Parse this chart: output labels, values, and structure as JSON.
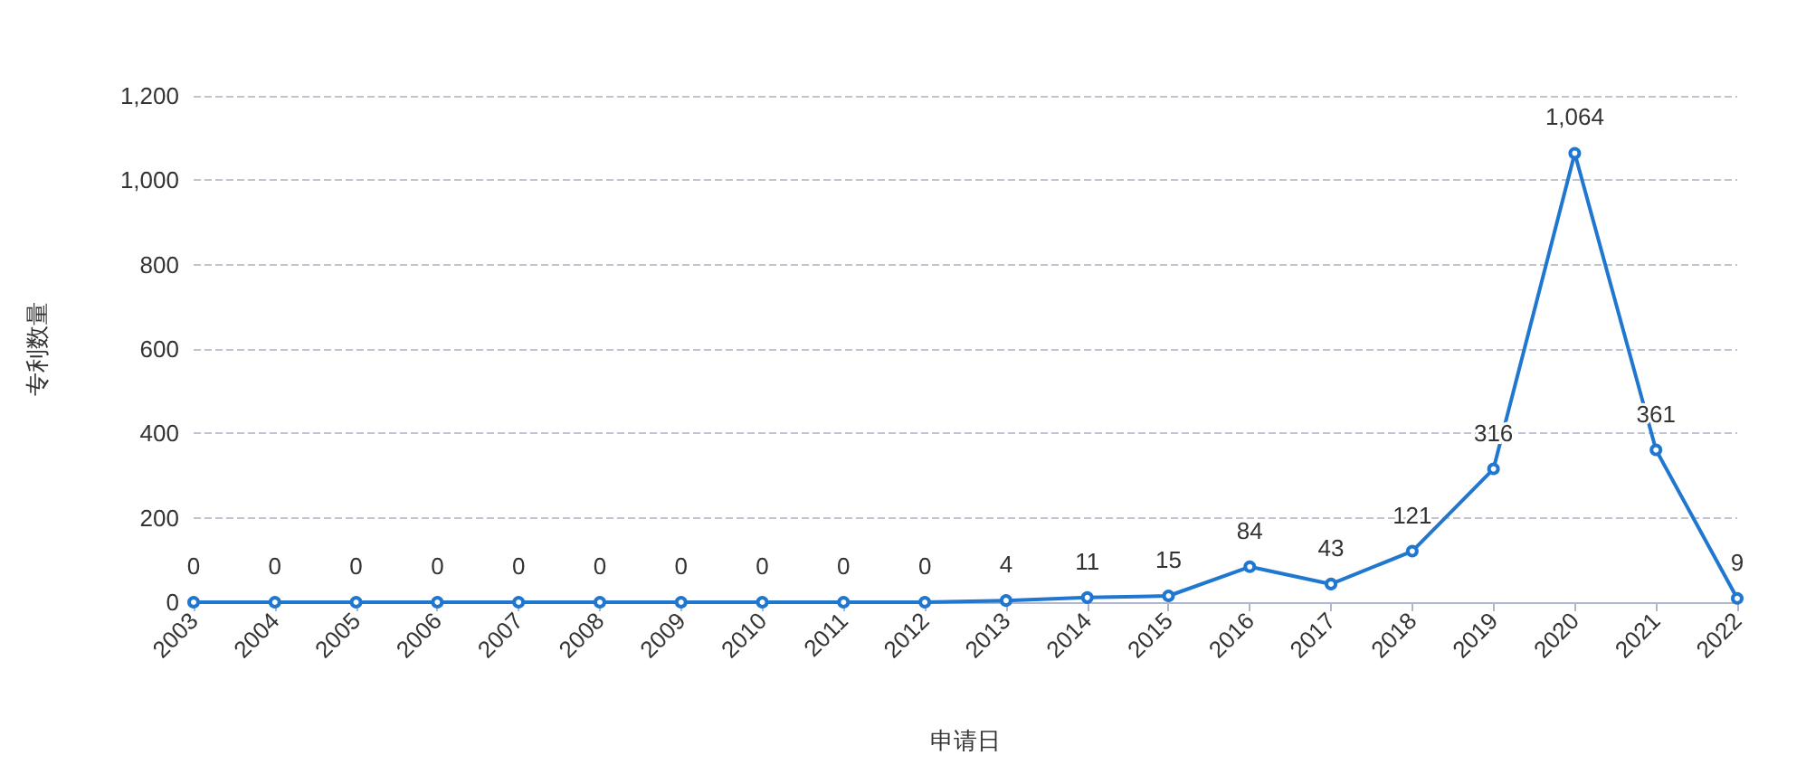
{
  "chart_data": {
    "type": "line",
    "xlabel": "申请日",
    "ylabel": "专利数量",
    "categories": [
      "2003",
      "2004",
      "2005",
      "2006",
      "2007",
      "2008",
      "2009",
      "2010",
      "2011",
      "2012",
      "2013",
      "2014",
      "2015",
      "2016",
      "2017",
      "2018",
      "2019",
      "2020",
      "2021",
      "2022"
    ],
    "series": [
      {
        "color": "#1f77d0",
        "values": [
          0,
          0,
          0,
          0,
          0,
          0,
          0,
          0,
          0,
          0,
          4,
          11,
          15,
          84,
          43,
          121,
          316,
          1064,
          361,
          9
        ],
        "value_labels": [
          "0",
          "0",
          "0",
          "0",
          "0",
          "0",
          "0",
          "0",
          "0",
          "0",
          "4",
          "11",
          "15",
          "84",
          "43",
          "121",
          "316",
          "1,064",
          "361",
          "9"
        ]
      }
    ],
    "ylim": [
      0,
      1200
    ],
    "yticks": [
      0,
      200,
      400,
      600,
      800,
      {
        "value": 1000,
        "label": "1,000"
      },
      {
        "value": 1200,
        "label": "1,200"
      }
    ],
    "grid": "y",
    "marker": "circle",
    "line_style": "solid"
  }
}
